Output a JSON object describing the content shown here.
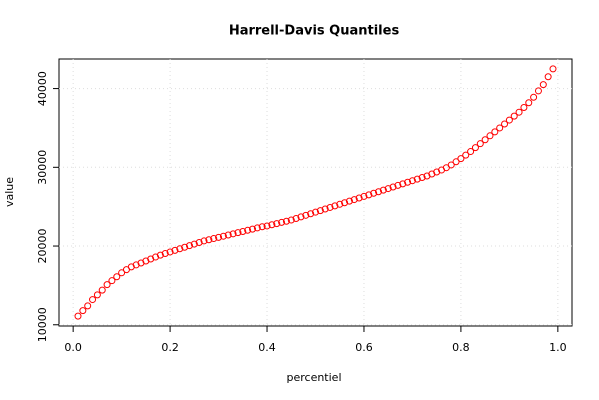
{
  "chart_data": {
    "type": "scatter",
    "title": "Harrell-Davis Quantiles",
    "x_label": "percentiel",
    "y_label": "value",
    "x": [
      0.01,
      0.02,
      0.03,
      0.04,
      0.05,
      0.06,
      0.07,
      0.08,
      0.09,
      0.1,
      0.11,
      0.12,
      0.13,
      0.14,
      0.15,
      0.16,
      0.17,
      0.18,
      0.19,
      0.2,
      0.21,
      0.22,
      0.23,
      0.24,
      0.25,
      0.26,
      0.27,
      0.28,
      0.29,
      0.3,
      0.31,
      0.32,
      0.33,
      0.34,
      0.35,
      0.36,
      0.37,
      0.38,
      0.39,
      0.4,
      0.41,
      0.42,
      0.43,
      0.44,
      0.45,
      0.46,
      0.47,
      0.48,
      0.49,
      0.5,
      0.51,
      0.52,
      0.53,
      0.54,
      0.55,
      0.56,
      0.57,
      0.58,
      0.59,
      0.6,
      0.61,
      0.62,
      0.63,
      0.64,
      0.65,
      0.66,
      0.67,
      0.68,
      0.69,
      0.7,
      0.71,
      0.72,
      0.73,
      0.74,
      0.75,
      0.76,
      0.77,
      0.78,
      0.79,
      0.8,
      0.81,
      0.82,
      0.83,
      0.84,
      0.85,
      0.86,
      0.87,
      0.88,
      0.89,
      0.9,
      0.91,
      0.92,
      0.93,
      0.94,
      0.95,
      0.96,
      0.97,
      0.98,
      0.99
    ],
    "values": [
      11100,
      11800,
      12400,
      13200,
      13800,
      14400,
      15100,
      15600,
      16100,
      16600,
      17000,
      17350,
      17600,
      17850,
      18100,
      18350,
      18600,
      18850,
      19050,
      19250,
      19450,
      19650,
      19850,
      20050,
      20250,
      20450,
      20650,
      20800,
      20950,
      21100,
      21250,
      21400,
      21550,
      21700,
      21850,
      22000,
      22150,
      22300,
      22450,
      22550,
      22700,
      22850,
      23000,
      23150,
      23300,
      23500,
      23700,
      23900,
      24100,
      24300,
      24500,
      24700,
      24900,
      25100,
      25300,
      25500,
      25700,
      25900,
      26100,
      26300,
      26500,
      26700,
      26900,
      27100,
      27300,
      27500,
      27700,
      27900,
      28100,
      28300,
      28500,
      28700,
      28900,
      29150,
      29400,
      29650,
      29950,
      30300,
      30700,
      31100,
      31550,
      32000,
      32500,
      33000,
      33500,
      34000,
      34500,
      35000,
      35500,
      36000,
      36500,
      37000,
      37600,
      38200,
      38900,
      39700,
      40500,
      41500,
      42500
    ],
    "color": "#ff0000",
    "xlim": [
      -0.0292,
      1.0292
    ],
    "ylim": [
      9844,
      43756
    ],
    "xticks": [
      {
        "value": 0,
        "label": "0.0"
      },
      0.2,
      0.4,
      0.6,
      0.8,
      {
        "value": 1,
        "label": "1.0"
      }
    ],
    "yticks": [
      10000,
      20000,
      30000,
      40000
    ],
    "grid": true
  }
}
